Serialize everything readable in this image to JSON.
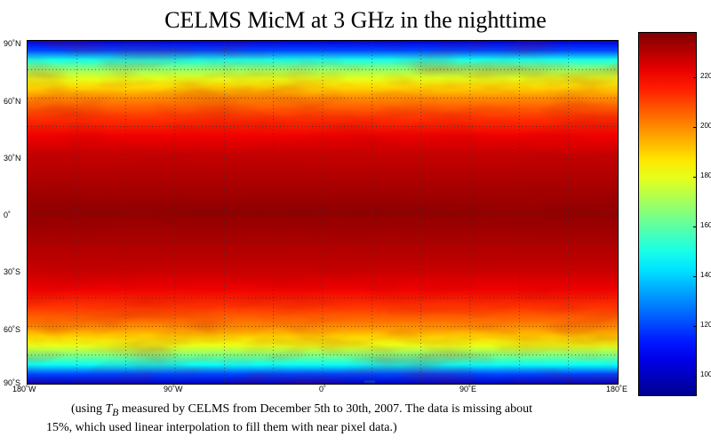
{
  "title": "CELMS MicM at 3 GHz in the nighttime",
  "lat_ticks": [
    "90˚N",
    "60˚N",
    "30˚N",
    "0˚",
    "30˚S",
    "60˚S",
    "90˚S"
  ],
  "lon_ticks": [
    "180˚W",
    "90˚W",
    "0˚",
    "90˚E",
    "180˚E"
  ],
  "colorbar": {
    "ticks": [
      "220",
      "200",
      "180",
      "160",
      "140",
      "120",
      "100"
    ],
    "min": 92,
    "max": 238,
    "colors": [
      "#00008f",
      "#0000ff",
      "#0080ff",
      "#00ffff",
      "#80ff80",
      "#ffff00",
      "#ff8000",
      "#ff0000",
      "#800000"
    ]
  },
  "caption": {
    "prefix": "(using ",
    "tb_main": "T",
    "tb_sub": "B",
    "line1_rest": " measured by CELMS from December 5th to 30th, 2007. The data is missing about",
    "line2": "15%, which used linear interpolation to fill them with near pixel data.)"
  },
  "map_bands": [
    {
      "lat": 90,
      "tb": 105
    },
    {
      "lat": 85,
      "tb": 120
    },
    {
      "lat": 80,
      "tb": 150
    },
    {
      "lat": 75,
      "tb": 168
    },
    {
      "lat": 70,
      "tb": 180
    },
    {
      "lat": 65,
      "tb": 190
    },
    {
      "lat": 60,
      "tb": 200
    },
    {
      "lat": 50,
      "tb": 212
    },
    {
      "lat": 40,
      "tb": 222
    },
    {
      "lat": 30,
      "tb": 228
    },
    {
      "lat": 15,
      "tb": 232
    },
    {
      "lat": 0,
      "tb": 236
    },
    {
      "lat": -15,
      "tb": 232
    },
    {
      "lat": -30,
      "tb": 228
    },
    {
      "lat": -40,
      "tb": 222
    },
    {
      "lat": -50,
      "tb": 212
    },
    {
      "lat": -60,
      "tb": 200
    },
    {
      "lat": -65,
      "tb": 190
    },
    {
      "lat": -70,
      "tb": 180
    },
    {
      "lat": -75,
      "tb": 165
    },
    {
      "lat": -80,
      "tb": 148
    },
    {
      "lat": -85,
      "tb": 120
    },
    {
      "lat": -90,
      "tb": 100
    }
  ]
}
